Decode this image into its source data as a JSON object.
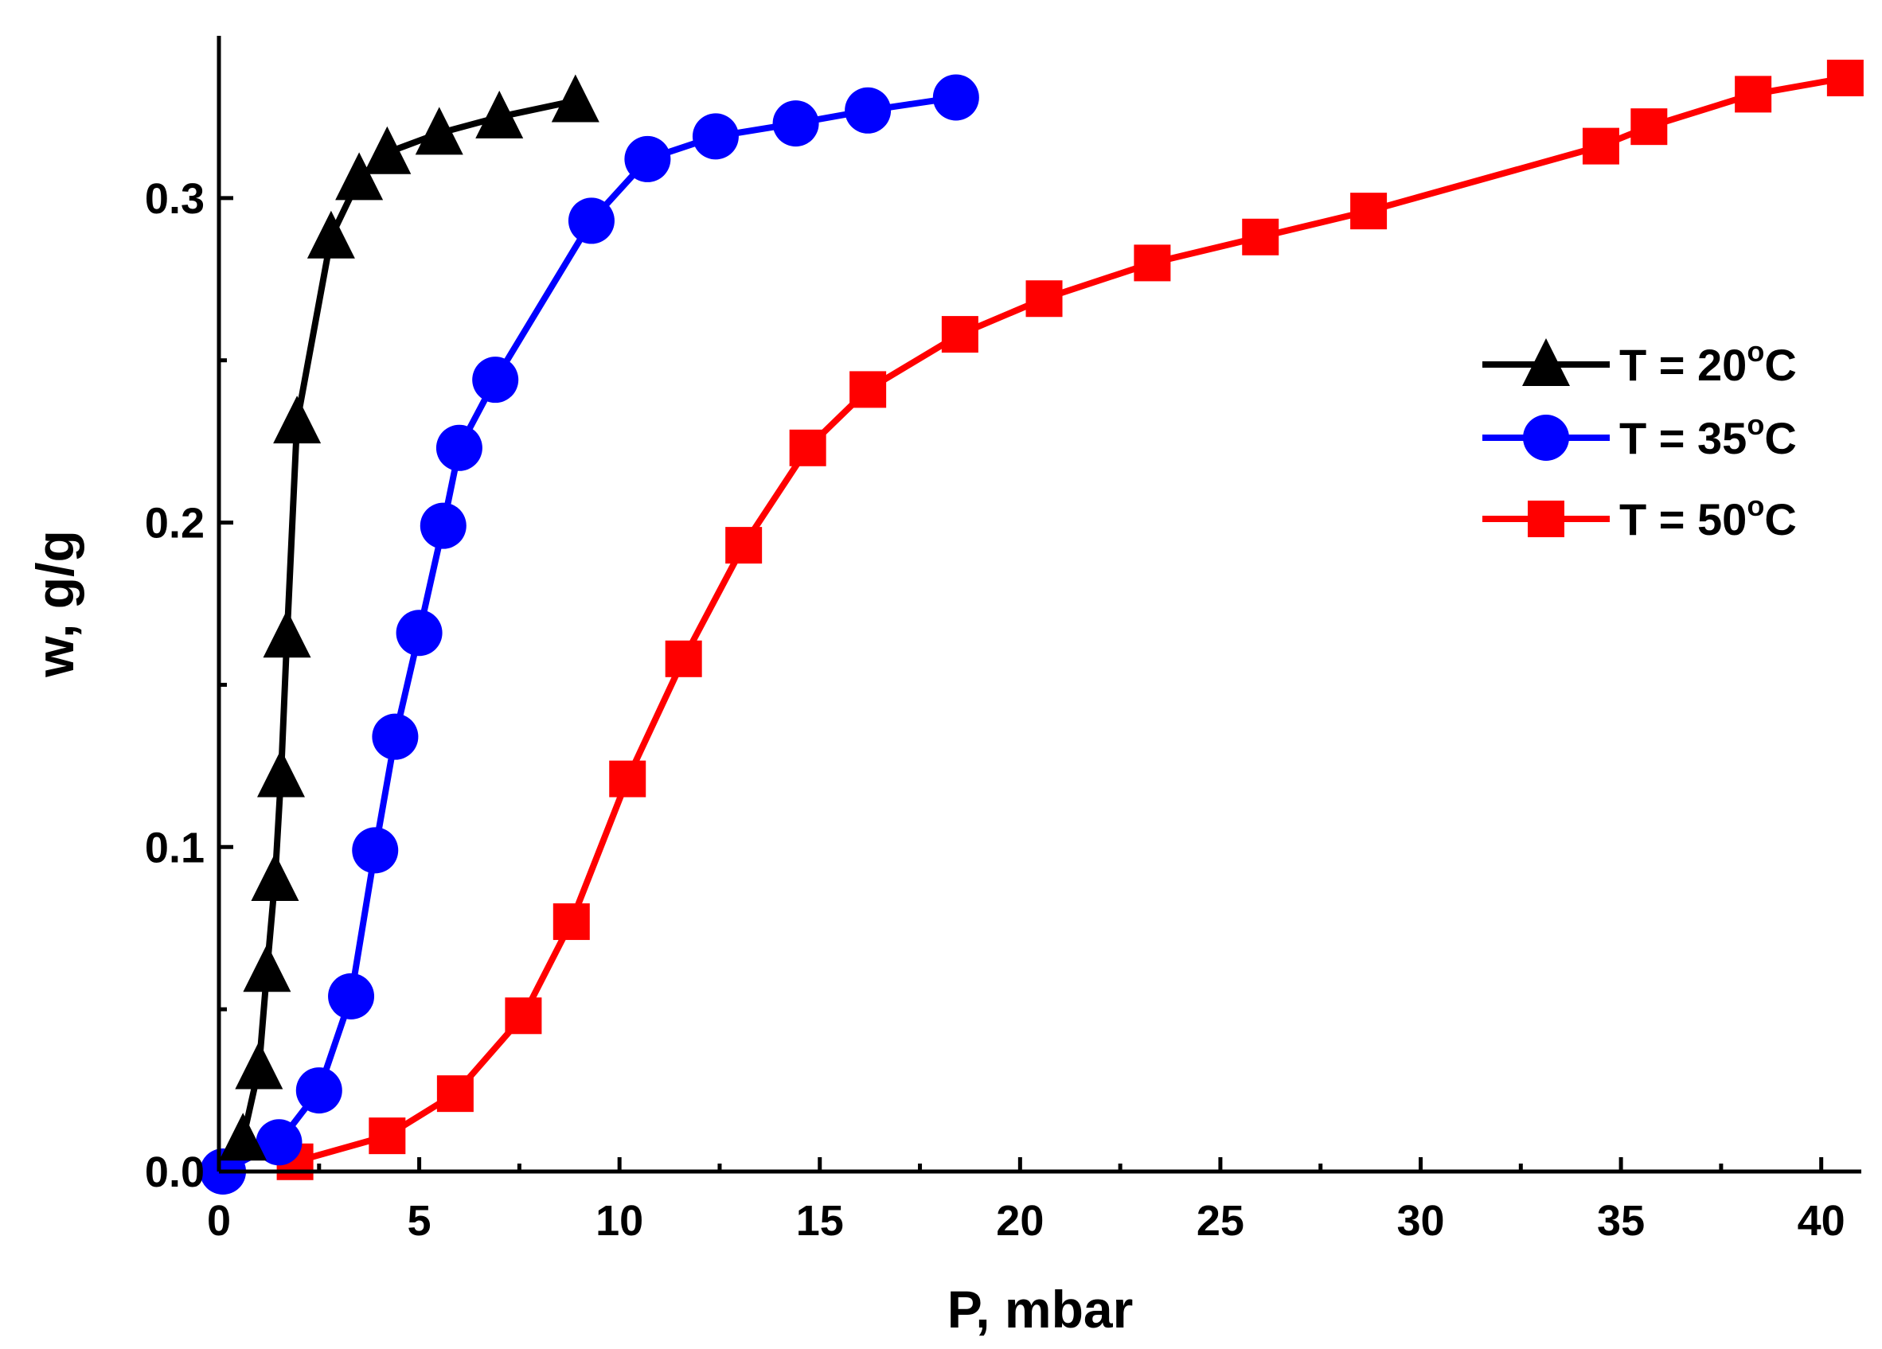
{
  "chart_data": {
    "type": "line",
    "title": "",
    "xlabel": "P, mbar",
    "ylabel": "w, g/g",
    "xlim": [
      0,
      41
    ],
    "ylim": [
      0,
      0.35
    ],
    "xticks": [
      0,
      5,
      10,
      15,
      20,
      25,
      30,
      35,
      40
    ],
    "xtick_labels": [
      "0",
      "5",
      "10",
      "15",
      "20",
      "25",
      "30",
      "35",
      "40"
    ],
    "yticks": [
      0.0,
      0.1,
      0.2,
      0.3
    ],
    "ytick_labels": [
      "0.0",
      "0.1",
      "0.2",
      "0.3"
    ],
    "legend_position": "right",
    "series": [
      {
        "name": "T = 20°C",
        "label_prefix": "T = 20",
        "label_sup": "o",
        "label_suffix": "C",
        "color": "#000000",
        "marker": "triangle",
        "x": [
          0.6,
          1.0,
          1.2,
          1.4,
          1.55,
          1.7,
          1.95,
          2.8,
          3.5,
          4.2,
          5.5,
          7.0,
          8.9
        ],
        "y": [
          0.01,
          0.032,
          0.062,
          0.09,
          0.122,
          0.165,
          0.231,
          0.288,
          0.306,
          0.314,
          0.32,
          0.325,
          0.33
        ]
      },
      {
        "name": "T = 35°C",
        "label_prefix": "T = 35",
        "label_sup": "o",
        "label_suffix": "C",
        "color": "#0000ff",
        "marker": "circle",
        "x": [
          0.1,
          1.5,
          2.5,
          3.3,
          3.9,
          4.4,
          5.0,
          5.6,
          6.0,
          6.9,
          9.3,
          10.7,
          12.4,
          14.4,
          16.2,
          18.4
        ],
        "y": [
          0.0,
          0.009,
          0.025,
          0.054,
          0.099,
          0.134,
          0.166,
          0.199,
          0.223,
          0.244,
          0.293,
          0.312,
          0.319,
          0.323,
          0.327,
          0.331
        ]
      },
      {
        "name": "T = 50°C",
        "label_prefix": "T = 50",
        "label_sup": "o",
        "label_suffix": "C",
        "color": "#ff0000",
        "marker": "square",
        "x": [
          1.9,
          4.2,
          5.9,
          7.6,
          8.8,
          10.2,
          11.6,
          13.1,
          14.7,
          16.2,
          18.5,
          20.6,
          23.3,
          26.0,
          28.7,
          34.5,
          35.7,
          38.3,
          40.6
        ],
        "y": [
          0.003,
          0.011,
          0.024,
          0.048,
          0.077,
          0.121,
          0.158,
          0.193,
          0.223,
          0.241,
          0.258,
          0.269,
          0.28,
          0.288,
          0.296,
          0.316,
          0.322,
          0.332,
          0.337
        ]
      }
    ]
  }
}
